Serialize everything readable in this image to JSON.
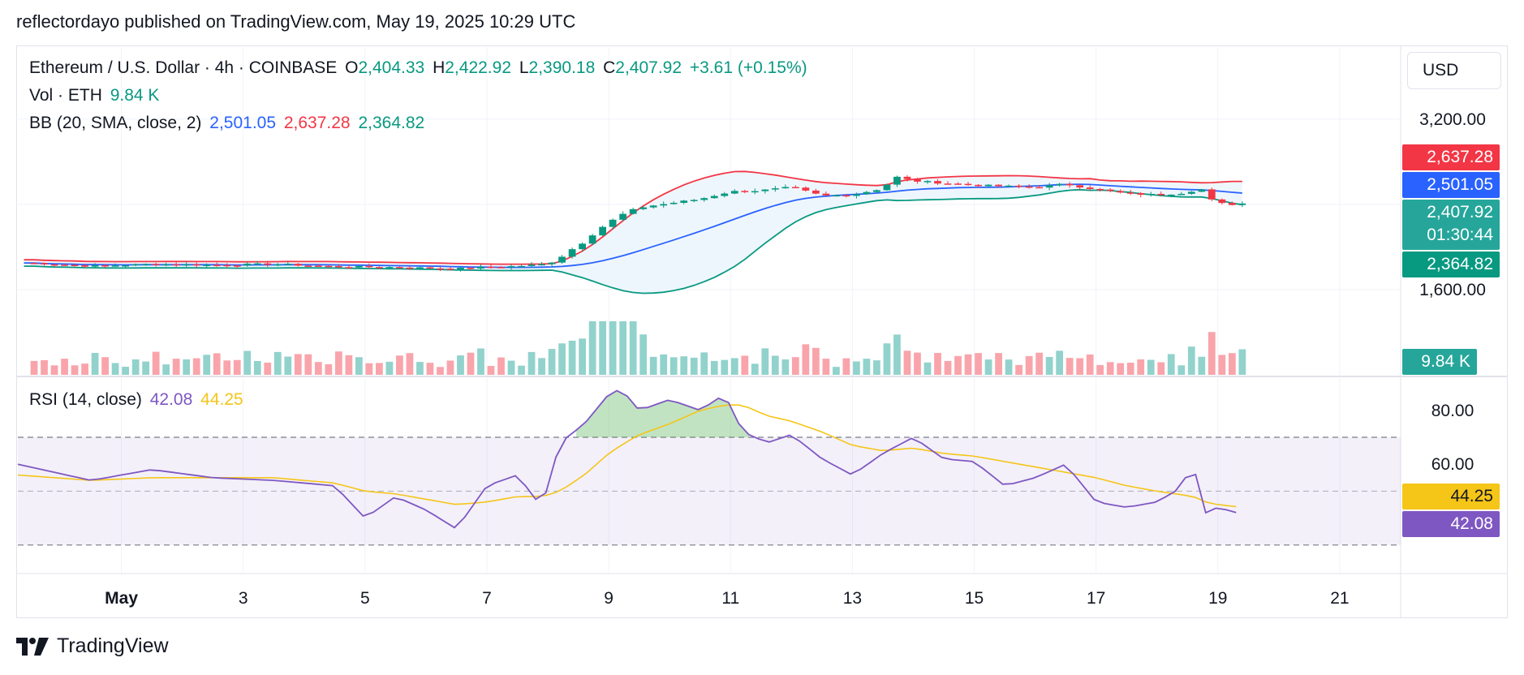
{
  "header": {
    "published": "reflectordayo published on TradingView.com, May 19, 2025 10:29 UTC"
  },
  "legend": {
    "symbol": "Ethereum / U.S. Dollar · 4h · COINBASE",
    "o_label": "O",
    "o": "2,404.33",
    "h_label": "H",
    "h": "2,422.92",
    "l_label": "L",
    "l": "2,390.18",
    "c_label": "C",
    "c": "2,407.92",
    "change": "+3.61 (+0.15%)",
    "vol_label": "Vol · ETH",
    "vol": "9.84 K",
    "bb_label": "BB (20, SMA, close, 2)",
    "bb_basis": "2,501.05",
    "bb_upper": "2,637.28",
    "bb_lower": "2,364.82",
    "rsi_label": "RSI (14, close)",
    "rsi_value": "42.08",
    "rsi_ma": "44.25"
  },
  "currency_button": "USD",
  "price_tags": {
    "upper": "2,637.28",
    "basis": "2,501.05",
    "last": "2,407.92",
    "countdown": "01:30:44",
    "lower": "2,364.82",
    "volume": "9.84 K",
    "rsi_ma": "44.25",
    "rsi": "42.08"
  },
  "footer": {
    "brand": "TradingView"
  },
  "colors": {
    "up": "#089981",
    "down": "#f23645",
    "basis": "#2962ff",
    "rsi": "#7e57c2",
    "rsi_ma": "#f5c518",
    "band_fill": "#eef6fd"
  },
  "chart_data": {
    "type": "candlestick",
    "symbol": "Ethereum / U.S. Dollar",
    "timeframe": "4h",
    "exchange": "COINBASE",
    "price_axis": {
      "ticks": [
        1600,
        3200
      ],
      "tick_labels": [
        "1,600.00",
        "3,200.00"
      ],
      "range": [
        800,
        3800
      ]
    },
    "time_axis": {
      "labels": [
        "May",
        "3",
        "5",
        "7",
        "9",
        "11",
        "13",
        "15",
        "17",
        "19",
        "21"
      ],
      "label_days": [
        1,
        3,
        5,
        7,
        9,
        11,
        13,
        15,
        17,
        19,
        21
      ],
      "range_days": [
        -0.7,
        22.0
      ]
    },
    "close_series": {
      "x_days": [
        -0.5,
        0.5,
        1.5,
        2.5,
        3.5,
        4.5,
        5.5,
        6.5,
        7.0,
        7.5,
        8.0,
        8.2,
        8.4,
        8.6,
        8.8,
        9.0,
        9.3,
        9.6,
        10.0,
        10.5,
        11.0,
        11.5,
        12.0,
        12.5,
        13.0,
        13.5,
        13.7,
        14.0,
        14.5,
        15.0,
        15.5,
        16.0,
        16.5,
        17.0,
        17.5,
        18.0,
        18.5,
        18.7,
        18.9,
        19.1,
        19.3,
        19.5
      ],
      "close": [
        1850,
        1820,
        1840,
        1830,
        1840,
        1815,
        1810,
        1795,
        1810,
        1820,
        1840,
        1900,
        1980,
        2050,
        2150,
        2230,
        2330,
        2380,
        2410,
        2450,
        2520,
        2530,
        2560,
        2480,
        2490,
        2550,
        2660,
        2620,
        2600,
        2580,
        2570,
        2560,
        2590,
        2540,
        2500,
        2490,
        2510,
        2560,
        2440,
        2400,
        2400,
        2407.92
      ]
    },
    "bollinger": {
      "period": 20,
      "stddev": 2,
      "basis_last": 2501.05,
      "upper_last": 2637.28,
      "lower_last": 2364.82
    },
    "volume": {
      "unit": "ETH",
      "last": 9840
    },
    "rsi": {
      "period": 14,
      "y_ticks": [
        60,
        80
      ],
      "tick_labels": [
        "60.00",
        "80.00"
      ],
      "bands": [
        30,
        50,
        70
      ],
      "range": [
        20,
        92
      ],
      "x_days": [
        -0.7,
        0.5,
        1.5,
        2.5,
        3.5,
        4.5,
        5.0,
        5.5,
        6.0,
        6.5,
        7.0,
        7.5,
        7.9,
        8.2,
        8.6,
        9.0,
        9.2,
        9.5,
        10.0,
        10.5,
        10.9,
        11.2,
        11.6,
        12.0,
        12.5,
        13.0,
        13.5,
        14.0,
        14.5,
        15.0,
        15.5,
        16.0,
        16.5,
        17.0,
        17.5,
        18.0,
        18.3,
        18.6,
        18.8,
        19.0,
        19.3
      ],
      "rsi": [
        60,
        54,
        58,
        55,
        54,
        52,
        40,
        48,
        43,
        36,
        52,
        56,
        44,
        68,
        75,
        86,
        88,
        80,
        84,
        80,
        86,
        72,
        68,
        71,
        62,
        56,
        64,
        70,
        62,
        61,
        52,
        55,
        60,
        46,
        44,
        46,
        50,
        59,
        42,
        44,
        42.08
      ],
      "ma": [
        56,
        54,
        55,
        55,
        55,
        53,
        50,
        49,
        47,
        45,
        46,
        48,
        48,
        50,
        56,
        64,
        67,
        71,
        75,
        80,
        82,
        82,
        78,
        76,
        72,
        67,
        65,
        66,
        64,
        63,
        61,
        59,
        57,
        55,
        52,
        50,
        49,
        48,
        46,
        45,
        44.25
      ]
    }
  }
}
